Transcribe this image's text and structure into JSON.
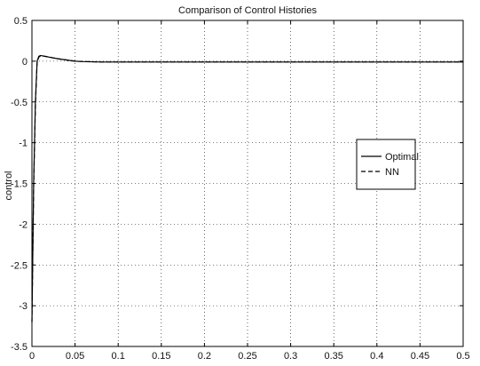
{
  "chart_data": {
    "type": "line",
    "title": "Comparison of Control Histories",
    "xlabel": "",
    "ylabel": "control",
    "xlim": [
      0,
      0.5
    ],
    "ylim": [
      -3.5,
      0.5
    ],
    "xticks": [
      0,
      0.05,
      0.1,
      0.15,
      0.2,
      0.25,
      0.3,
      0.35,
      0.4,
      0.45,
      0.5
    ],
    "xtick_labels": [
      "0",
      "0.05",
      "0.1",
      "0.15",
      "0.2",
      "0.25",
      "0.3",
      "0.35",
      "0.4",
      "0.45",
      "0.5"
    ],
    "yticks": [
      0.5,
      0,
      -0.5,
      -1,
      -1.5,
      -2,
      -2.5,
      -3,
      -3.5
    ],
    "ytick_labels": [
      "0.5",
      "0",
      "-0.5",
      "-1",
      "-1.5",
      "-2",
      "-2.5",
      "-3",
      "-3.5"
    ],
    "grid": true,
    "legend_position": "right",
    "series": [
      {
        "name": "Optimal",
        "style": "solid",
        "color": "#000000",
        "x": [
          0,
          0.002,
          0.004,
          0.006,
          0.008,
          0.01,
          0.015,
          0.02,
          0.03,
          0.04,
          0.05,
          0.06,
          0.08,
          0.1,
          0.15,
          0.2,
          0.3,
          0.4,
          0.5
        ],
        "y": [
          -3.2,
          -1.5,
          -0.5,
          0.0,
          0.06,
          0.07,
          0.06,
          0.05,
          0.03,
          0.015,
          0.0,
          -0.005,
          -0.01,
          -0.01,
          -0.01,
          -0.01,
          -0.01,
          -0.01,
          -0.01
        ]
      },
      {
        "name": "NN",
        "style": "dashed",
        "color": "#000000",
        "x": [
          0,
          0.002,
          0.004,
          0.006,
          0.008,
          0.01,
          0.015,
          0.02,
          0.03,
          0.04,
          0.05,
          0.06,
          0.08,
          0.1,
          0.15,
          0.2,
          0.3,
          0.4,
          0.5
        ],
        "y": [
          -3.2,
          -1.55,
          -0.55,
          -0.02,
          0.05,
          0.065,
          0.06,
          0.05,
          0.03,
          0.015,
          0.0,
          -0.005,
          -0.01,
          -0.01,
          -0.01,
          -0.01,
          -0.01,
          -0.01,
          -0.01
        ]
      }
    ]
  }
}
